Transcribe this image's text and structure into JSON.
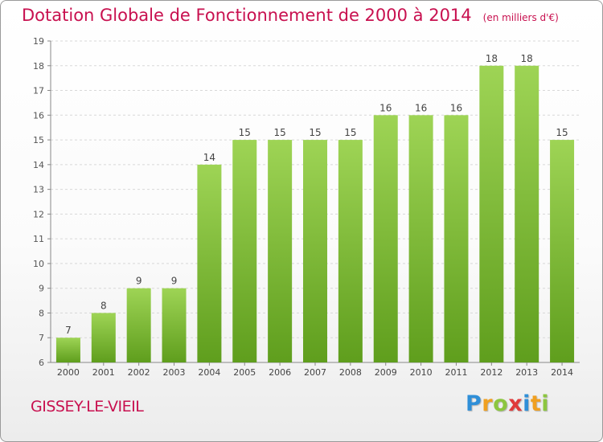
{
  "header": {
    "title": "Dotation Globale de Fonctionnement de 2000 à 2014",
    "unit": "(en milliers d'€)"
  },
  "commune": "GISSEY-LE-VIEIL",
  "logo": {
    "letters": [
      "P",
      "r",
      "o",
      "x",
      "i",
      "t",
      "i"
    ],
    "colors": [
      "#2f8fd8",
      "#f0a020",
      "#8cc63f",
      "#e03a3a",
      "#2f8fd8",
      "#f0a020",
      "#8cc63f"
    ]
  },
  "colors": {
    "bar_top": "#9ed455",
    "bar_bottom": "#5f9e1d",
    "title": "#c8104f",
    "grid": "#d8d8d8"
  },
  "chart_data": {
    "type": "bar",
    "title": "Dotation Globale de Fonctionnement de 2000 à 2014",
    "subtitle": "(en milliers d'€)",
    "categories": [
      "2000",
      "2001",
      "2002",
      "2003",
      "2004",
      "2005",
      "2006",
      "2007",
      "2008",
      "2009",
      "2010",
      "2011",
      "2012",
      "2013",
      "2014"
    ],
    "values": [
      7,
      8,
      9,
      9,
      14,
      15,
      15,
      15,
      15,
      16,
      16,
      16,
      18,
      18,
      15
    ],
    "ylim": [
      6,
      19
    ],
    "yticks": [
      6,
      7,
      8,
      9,
      10,
      11,
      12,
      13,
      14,
      15,
      16,
      17,
      18,
      19
    ],
    "grid": true,
    "data_labels": true
  }
}
